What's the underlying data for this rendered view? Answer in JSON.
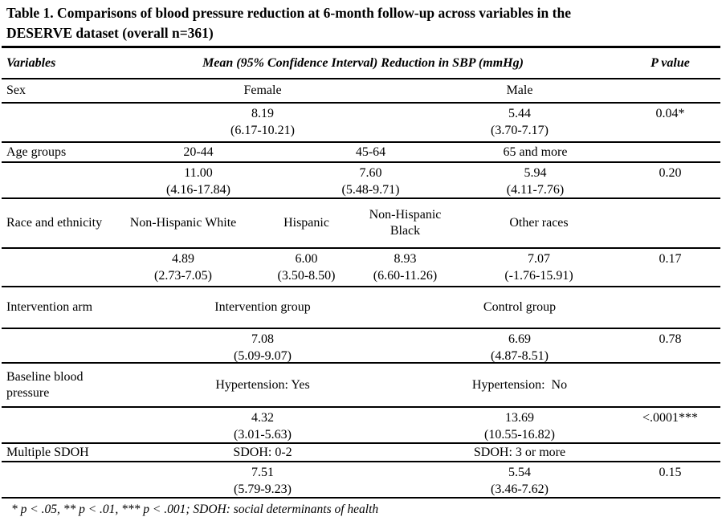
{
  "title": {
    "line1": "Table 1. Comparisons of blood pressure reduction at 6-month follow-up across variables in the",
    "line2": "DESERVE dataset (overall n=361)"
  },
  "header": {
    "variables": "Variables",
    "mean_ci": "Mean (95% Confidence Interval) Reduction in SBP (mmHg)",
    "p_value": "P value"
  },
  "sections": {
    "sex": {
      "label": "Sex",
      "categories": [
        "Female",
        "Male"
      ],
      "means": [
        "8.19",
        "5.44"
      ],
      "cis": [
        "(6.17-10.21)",
        "(3.70-7.17)"
      ],
      "p": "0.04*"
    },
    "age": {
      "label": "Age groups",
      "categories": [
        "20-44",
        "45-64",
        "65 and more"
      ],
      "means": [
        "11.00",
        "7.60",
        "5.94"
      ],
      "cis": [
        "(4.16-17.84)",
        "(5.48-9.71)",
        "(4.11-7.76)"
      ],
      "p": "0.20"
    },
    "race": {
      "label": "Race and ethnicity",
      "categories": [
        "Non-Hispanic White",
        "Hispanic",
        "Non-Hispanic Black",
        "Other races"
      ],
      "means": [
        "4.89",
        "6.00",
        "8.93",
        "7.07"
      ],
      "cis": [
        "(2.73-7.05)",
        "(3.50-8.50)",
        "(6.60-11.26)",
        "(-1.76-15.91)"
      ],
      "p": "0.17"
    },
    "intervention": {
      "label": "Intervention arm",
      "categories": [
        "Intervention group",
        "Control group"
      ],
      "means": [
        "7.08",
        "6.69"
      ],
      "cis": [
        "(5.09-9.07)",
        "(4.87-8.51)"
      ],
      "p": "0.78"
    },
    "baseline_bp": {
      "label": "Baseline blood pressure",
      "categories": [
        "Hypertension: Yes",
        "Hypertension:  No"
      ],
      "means": [
        "4.32",
        "13.69"
      ],
      "cis": [
        "(3.01-5.63)",
        "(10.55-16.82)"
      ],
      "p": "<.0001***"
    },
    "sdoh": {
      "label": "Multiple SDOH",
      "categories": [
        "SDOH: 0-2",
        "SDOH: 3 or more"
      ],
      "means": [
        "7.51",
        "5.54"
      ],
      "cis": [
        "(5.79-9.23)",
        "(3.46-7.62)"
      ],
      "p": "0.15"
    }
  },
  "footnote": "* p < .05, ** p < .01, *** p < .001; SDOH: social determinants of health",
  "colors": {
    "text": "#000000",
    "background": "#ffffff",
    "rule": "#000000"
  }
}
